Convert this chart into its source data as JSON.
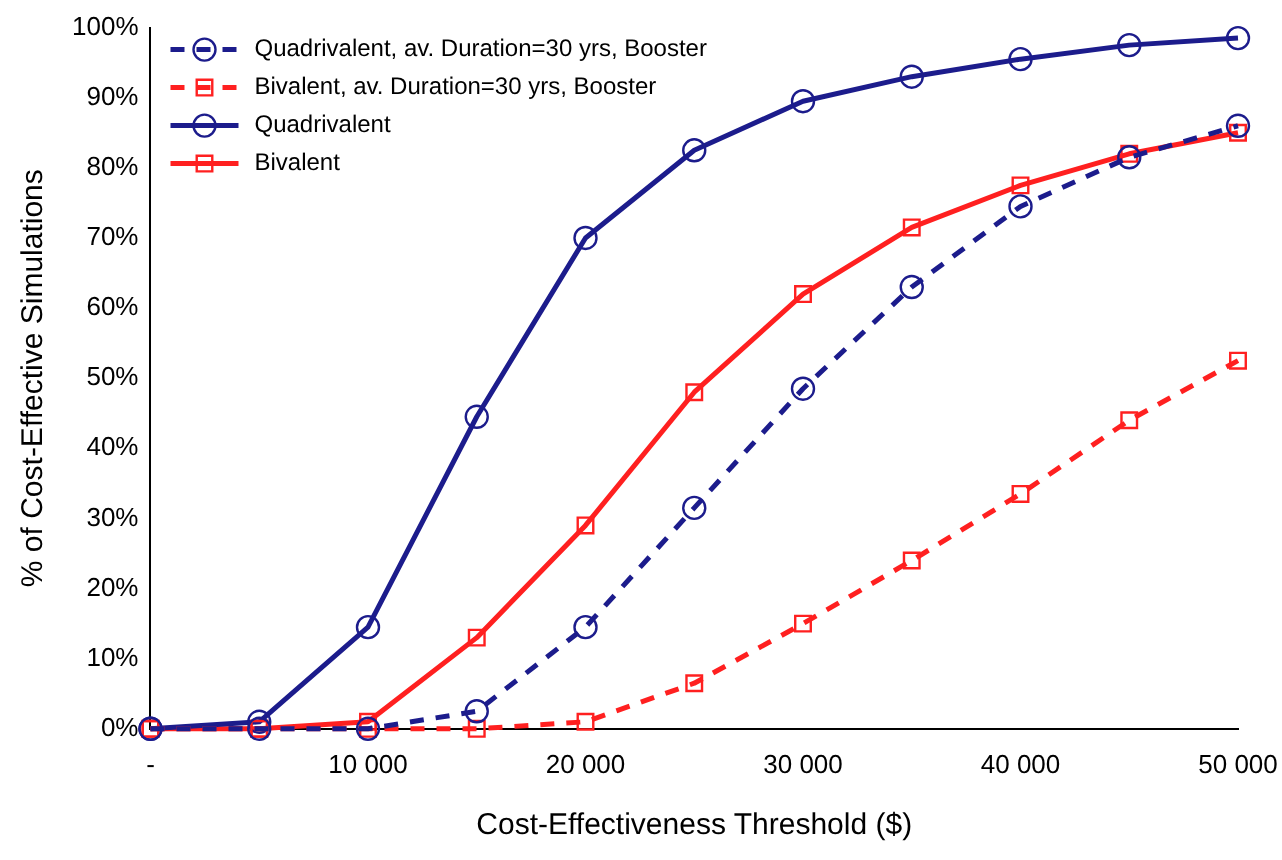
{
  "chart_data": {
    "type": "line",
    "xlabel": "Cost-Effectiveness Threshold ($)",
    "ylabel": "% of Cost-Effective Simulations",
    "x": [
      0,
      5000,
      10000,
      15000,
      20000,
      25000,
      30000,
      35000,
      40000,
      45000,
      50000
    ],
    "xlim": [
      0,
      50000
    ],
    "xticks": [
      {
        "value": 0,
        "label": "-"
      },
      {
        "value": 10000,
        "label": "10 000"
      },
      {
        "value": 20000,
        "label": "20 000"
      },
      {
        "value": 30000,
        "label": "30 000"
      },
      {
        "value": 40000,
        "label": "40 000"
      },
      {
        "value": 50000,
        "label": "50 000"
      }
    ],
    "ylim": [
      0,
      100
    ],
    "yticks": [
      {
        "value": 0,
        "label": "0%"
      },
      {
        "value": 10,
        "label": "10%"
      },
      {
        "value": 20,
        "label": "20%"
      },
      {
        "value": 30,
        "label": "30%"
      },
      {
        "value": 40,
        "label": "40%"
      },
      {
        "value": 50,
        "label": "50%"
      },
      {
        "value": 60,
        "label": "60%"
      },
      {
        "value": 70,
        "label": "70%"
      },
      {
        "value": 80,
        "label": "80%"
      },
      {
        "value": 90,
        "label": "90%"
      },
      {
        "value": 100,
        "label": "100%"
      }
    ],
    "grid": false,
    "legend": "top left",
    "series": [
      {
        "name": "Quadrivalent, av. Duration=30 yrs, Booster",
        "color": "#1c1c8c",
        "marker": "circle",
        "line_style": "dashed",
        "values": [
          0,
          0,
          0,
          2.5,
          14.5,
          31.5,
          48.5,
          63,
          74.5,
          81.5,
          86
        ]
      },
      {
        "name": "Bivalent, av. Duration=30 yrs, Booster",
        "color": "#ff2020",
        "marker": "square",
        "line_style": "dashed",
        "values": [
          0,
          0,
          0,
          0,
          1,
          6.5,
          15,
          24,
          33.5,
          44,
          52.5
        ]
      },
      {
        "name": "Quadrivalent",
        "color": "#1c1c8c",
        "marker": "circle",
        "line_style": "solid",
        "values": [
          0,
          1,
          14.5,
          44.5,
          70,
          82.5,
          89.5,
          93,
          95.5,
          97.5,
          98.5
        ]
      },
      {
        "name": "Bivalent",
        "color": "#ff2020",
        "marker": "square",
        "line_style": "solid",
        "values": [
          0,
          0,
          1,
          13,
          29,
          48,
          62,
          71.5,
          77.5,
          82,
          85
        ]
      }
    ]
  }
}
